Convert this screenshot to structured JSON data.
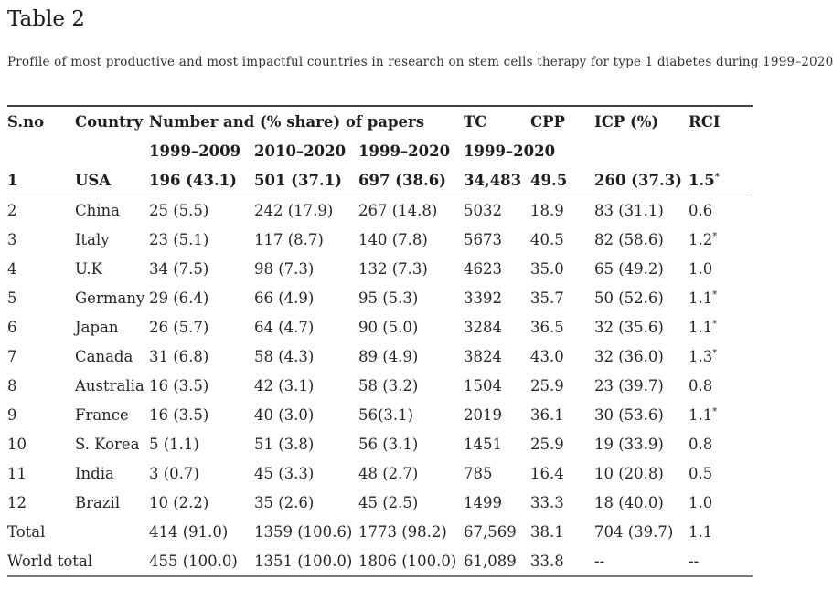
{
  "page": {
    "title": "Table 2",
    "caption": "Profile of most productive and most impactful countries in research on stem cells therapy for type 1 diabetes during 1999–2020"
  },
  "table": {
    "header": {
      "sno": "S.no",
      "country": "Country",
      "papers_group": "Number and (% share) of papers",
      "tc": "TC",
      "cpp": "CPP",
      "icp": "ICP (%)",
      "rci": "RCI",
      "sub_period_1": "1999–2009",
      "sub_period_2": "2010–2020",
      "sub_period_3": "1999–2020",
      "sub_tc_period": "1999–2020"
    },
    "usa_row": {
      "sno": "1",
      "country": "USA",
      "p1": "196 (43.1)",
      "p2": "501 (37.1)",
      "p3": "697 (38.6)",
      "tc": "34,483",
      "cpp": "49.5",
      "icp": "260 (37.3)",
      "rci": "1.5",
      "star": "*"
    },
    "rows": [
      {
        "sno": "2",
        "country": "China",
        "p1": "25 (5.5)",
        "p2": "242 (17.9)",
        "p3": "267 (14.8)",
        "tc": "5032",
        "cpp": "18.9",
        "icp": "83 (31.1)",
        "rci": "0.6",
        "star": ""
      },
      {
        "sno": "3",
        "country": "Italy",
        "p1": "23 (5.1)",
        "p2": "117 (8.7)",
        "p3": "140 (7.8)",
        "tc": "5673",
        "cpp": "40.5",
        "icp": "82 (58.6)",
        "rci": "1.2",
        "star": "*"
      },
      {
        "sno": "4",
        "country": "U.K",
        "p1": "34 (7.5)",
        "p2": "98 (7.3)",
        "p3": "132 (7.3)",
        "tc": "4623",
        "cpp": "35.0",
        "icp": "65 (49.2)",
        "rci": "1.0",
        "star": ""
      },
      {
        "sno": "5",
        "country": "Germany",
        "p1": "29 (6.4)",
        "p2": "66 (4.9)",
        "p3": "95 (5.3)",
        "tc": "3392",
        "cpp": "35.7",
        "icp": "50 (52.6)",
        "rci": "1.1",
        "star": "*"
      },
      {
        "sno": "6",
        "country": "Japan",
        "p1": "26 (5.7)",
        "p2": "64 (4.7)",
        "p3": "90 (5.0)",
        "tc": "3284",
        "cpp": "36.5",
        "icp": "32 (35.6)",
        "rci": "1.1",
        "star": "*"
      },
      {
        "sno": "7",
        "country": "Canada",
        "p1": "31 (6.8)",
        "p2": "58 (4.3)",
        "p3": "89 (4.9)",
        "tc": "3824",
        "cpp": "43.0",
        "icp": "32 (36.0)",
        "rci": "1.3",
        "star": "*"
      },
      {
        "sno": "8",
        "country": "Australia",
        "p1": "16 (3.5)",
        "p2": "42 (3.1)",
        "p3": "58 (3.2)",
        "tc": "1504",
        "cpp": "25.9",
        "icp": "23 (39.7)",
        "rci": "0.8",
        "star": ""
      },
      {
        "sno": "9",
        "country": "France",
        "p1": "16 (3.5)",
        "p2": "40 (3.0)",
        "p3": "56(3.1)",
        "tc": "2019",
        "cpp": "36.1",
        "icp": "30 (53.6)",
        "rci": "1.1",
        "star": "*"
      },
      {
        "sno": "10",
        "country": "S. Korea",
        "p1": "5 (1.1)",
        "p2": "51 (3.8)",
        "p3": "56 (3.1)",
        "tc": "1451",
        "cpp": "25.9",
        "icp": "19 (33.9)",
        "rci": "0.8",
        "star": ""
      },
      {
        "sno": "11",
        "country": "India",
        "p1": "3 (0.7)",
        "p2": "45 (3.3)",
        "p3": "48 (2.7)",
        "tc": "785",
        "cpp": "16.4",
        "icp": "10 (20.8)",
        "rci": "0.5",
        "star": ""
      },
      {
        "sno": "12",
        "country": "Brazil",
        "p1": "10 (2.2)",
        "p2": "35 (2.6)",
        "p3": "45 (2.5)",
        "tc": "1499",
        "cpp": "33.3",
        "icp": "18 (40.0)",
        "rci": "1.0",
        "star": ""
      }
    ],
    "total_row": {
      "label": "Total",
      "p1": "414 (91.0)",
      "p2": "1359 (100.6)",
      "p3": "1773 (98.2)",
      "tc": "67,569",
      "cpp": "38.1",
      "icp": "704 (39.7)",
      "rci": "1.1"
    },
    "world_row": {
      "label": "World total",
      "p1": "455 (100.0)",
      "p2": "1351 (100.0)",
      "p3": "1806 (100.0)",
      "tc": "61,089",
      "cpp": "33.8",
      "icp": "--",
      "rci": "--"
    }
  }
}
